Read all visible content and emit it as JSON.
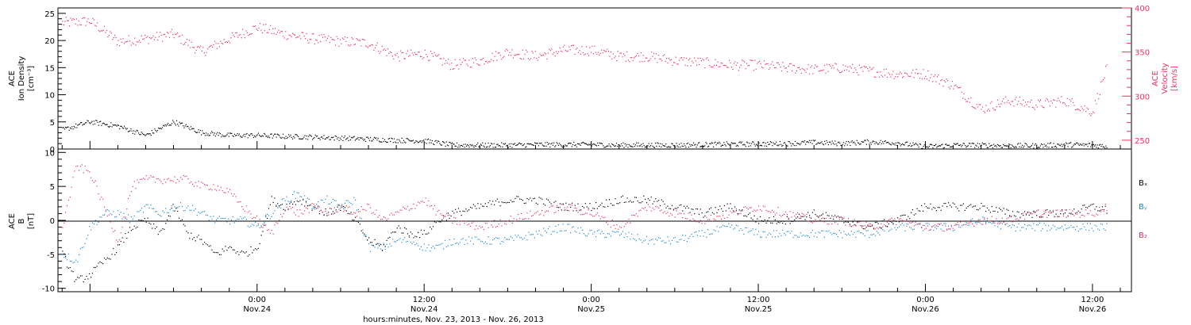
{
  "xaxis": {
    "title": "hours:minutes, Nov. 23, 2013 - Nov. 26, 2013",
    "range_hours": [
      -14.3,
      62.8
    ],
    "ticks": [
      {
        "hour": 0,
        "time": "0:00",
        "date": "Nov.24"
      },
      {
        "hour": 12,
        "time": "12:00",
        "date": "Nov.24"
      },
      {
        "hour": 24,
        "time": "0:00",
        "date": "Nov.25"
      },
      {
        "hour": 36,
        "time": "12:00",
        "date": "Nov.25"
      },
      {
        "hour": 48,
        "time": "0:00",
        "date": "Nov.26"
      },
      {
        "hour": 60,
        "time": "12:00",
        "date": "Nov.26"
      }
    ]
  },
  "top_panel": {
    "left_label": [
      "ACE",
      "Ion Density",
      "[cm⁻³]"
    ],
    "right_label": [
      "ACE",
      "Velocity",
      "[km/s]"
    ],
    "left_ticks": [
      "0",
      "5",
      "10",
      "15",
      "20",
      "25"
    ],
    "right_ticks": [
      "250",
      "300",
      "350",
      "400"
    ]
  },
  "bottom_panel": {
    "left_label": [
      "ACE",
      "B",
      "[nT]"
    ],
    "left_ticks": [
      "-10",
      "-5",
      "0",
      "5",
      "10"
    ],
    "legend": [
      "Bₓ",
      "Bᵧ",
      "B₂"
    ]
  },
  "colors": {
    "density": "#000000",
    "velocity": "#e8335e",
    "bx": "#000000",
    "by": "#1f88d8",
    "bz": "#e8335e"
  },
  "chart_data": [
    {
      "type": "scatter",
      "title": "",
      "x_unit": "hours since 0:00 Nov.24 2013",
      "xlim": [
        -14.3,
        62.8
      ],
      "ylim_left": [
        0,
        26
      ],
      "ylim_right": [
        240,
        400
      ],
      "series": [
        {
          "name": "Ion Density",
          "axis": "left",
          "x": [
            -14,
            -12,
            -10,
            -8,
            -6,
            -4,
            -2,
            0,
            2,
            4,
            6,
            8,
            10,
            12,
            14,
            16,
            18,
            20,
            22,
            24,
            26,
            28,
            30,
            32,
            34,
            36,
            38,
            40,
            42,
            44,
            46,
            48,
            50,
            52,
            54,
            56,
            58,
            60,
            61
          ],
          "y": [
            3.5,
            5,
            4.2,
            2.5,
            5,
            3,
            2.5,
            2.5,
            2.3,
            2.2,
            2,
            1.8,
            1.6,
            1.5,
            0.7,
            0.7,
            0.7,
            0.8,
            0.8,
            0.8,
            0.7,
            0.7,
            0.7,
            0.8,
            0.9,
            0.9,
            1,
            1.2,
            1,
            1.3,
            1.1,
            0.4,
            0.7,
            0.7,
            0.6,
            0.6,
            0.8,
            0.7,
            0.5
          ]
        },
        {
          "name": "Velocity",
          "axis": "right",
          "x": [
            -14,
            -12,
            -10,
            -8,
            -6,
            -4,
            -2,
            0,
            2,
            4,
            6,
            8,
            10,
            12,
            14,
            16,
            18,
            20,
            22,
            24,
            26,
            28,
            30,
            32,
            34,
            36,
            38,
            40,
            42,
            44,
            46,
            48,
            50,
            52,
            54,
            56,
            58,
            60,
            61
          ],
          "y": [
            383,
            385,
            362,
            365,
            370,
            350,
            365,
            378,
            370,
            365,
            362,
            360,
            345,
            348,
            335,
            340,
            350,
            345,
            352,
            352,
            345,
            345,
            340,
            338,
            335,
            335,
            332,
            330,
            332,
            328,
            325,
            325,
            312,
            285,
            295,
            290,
            295,
            282,
            332
          ]
        }
      ]
    },
    {
      "type": "scatter",
      "title": "",
      "x_unit": "hours since 0:00 Nov.24 2013",
      "xlim": [
        -14.3,
        62.8
      ],
      "ylim": [
        -10.5,
        10.5
      ],
      "ylabel": "B [nT]",
      "series": [
        {
          "name": "Bₓ",
          "x": [
            -14,
            -13,
            -12,
            -11,
            -10,
            -9,
            -8,
            -7,
            -6,
            -5,
            -4,
            -3,
            -2,
            -1,
            0,
            1,
            2,
            3,
            4,
            5,
            6,
            7,
            8,
            9,
            10,
            11,
            12,
            13,
            14,
            16,
            18,
            20,
            22,
            24,
            26,
            28,
            30,
            32,
            34,
            36,
            38,
            40,
            42,
            44,
            46,
            48,
            50,
            52,
            54,
            56,
            58,
            60,
            61
          ],
          "y": [
            -5,
            -9,
            -8,
            -6,
            -4,
            -1,
            0,
            -2,
            2,
            -2,
            -3,
            -5,
            -4,
            -5,
            -4,
            3,
            2,
            3,
            2,
            1,
            2,
            0,
            -3,
            -4,
            -1,
            -2,
            -2,
            0,
            1,
            2,
            3,
            3,
            2,
            2,
            3,
            3,
            2,
            1,
            2,
            0,
            0,
            1,
            0,
            -1,
            0,
            2,
            2,
            2,
            1,
            1,
            1,
            2,
            1.5
          ]
        },
        {
          "name": "Bᵧ",
          "x": [
            -14,
            -13,
            -12,
            -11,
            -10,
            -9,
            -8,
            -7,
            -6,
            -5,
            -4,
            -3,
            -2,
            -1,
            0,
            1,
            2,
            3,
            4,
            5,
            6,
            7,
            8,
            9,
            10,
            11,
            12,
            13,
            14,
            16,
            18,
            20,
            22,
            24,
            26,
            28,
            30,
            32,
            34,
            36,
            38,
            40,
            42,
            44,
            46,
            48,
            50,
            52,
            54,
            56,
            58,
            60,
            61
          ],
          "y": [
            -5,
            -6,
            -1,
            1,
            1,
            0,
            2,
            1,
            2,
            2,
            1,
            0,
            0,
            0,
            -1,
            1,
            3,
            4,
            2,
            3,
            2,
            3,
            -4,
            -4,
            -3,
            -3,
            -4,
            -4,
            -3,
            -3,
            -3,
            -2,
            -1,
            -2,
            -2,
            -3,
            -3,
            -2,
            -1,
            -2,
            -2,
            -2,
            -2,
            -2,
            -1,
            -1,
            -1,
            0,
            -1,
            -1,
            -1,
            -1,
            -1
          ]
        },
        {
          "name": "B₂",
          "x": [
            -14,
            -13,
            -12,
            -11,
            -10,
            -9,
            -8,
            -7,
            -6,
            -5,
            -4,
            -3,
            -2,
            -1,
            0,
            1,
            2,
            3,
            4,
            5,
            6,
            7,
            8,
            9,
            10,
            11,
            12,
            13,
            14,
            16,
            18,
            20,
            22,
            24,
            26,
            28,
            30,
            32,
            34,
            36,
            38,
            40,
            42,
            44,
            46,
            48,
            50,
            52,
            54,
            56,
            58,
            60,
            61
          ],
          "y": [
            -1,
            8,
            7,
            2,
            -3,
            5,
            6,
            6,
            6,
            6,
            5,
            5,
            4,
            2,
            0,
            -2,
            2,
            1,
            2,
            1,
            2,
            1,
            2,
            0,
            1,
            2,
            3,
            1,
            0,
            -1,
            0,
            1,
            2,
            1,
            -1,
            2,
            1,
            0,
            1,
            2,
            1,
            0,
            0,
            -1,
            0,
            -1,
            -1,
            0,
            0,
            1,
            1,
            1,
            2
          ]
        }
      ]
    }
  ]
}
